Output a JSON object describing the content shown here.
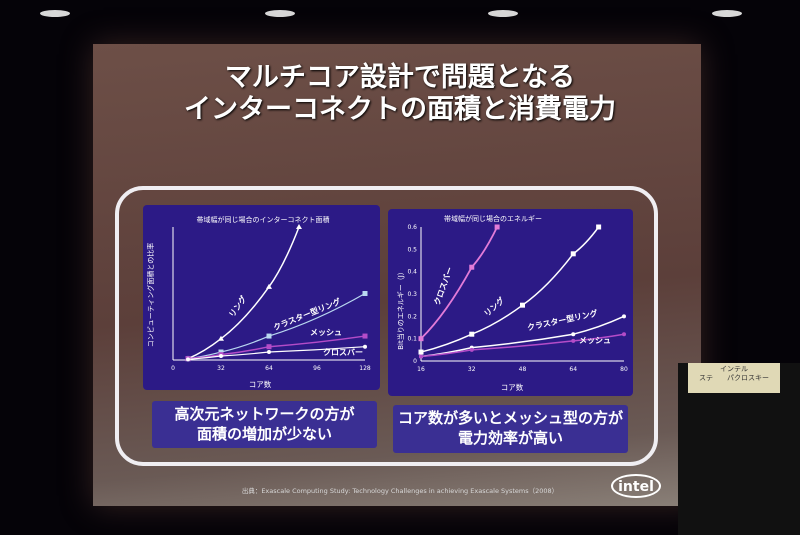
{
  "title_line1": "マルチコア設計で問題となる",
  "title_line2": "インターコネクトの面積と消費電力",
  "caption_left_line1": "高次元ネットワークの方が",
  "caption_left_line2": "面積の増加が少ない",
  "caption_right_line1": "コア数が多いとメッシュ型の方が",
  "caption_right_line2": "電力効率が高い",
  "source": "出典：Exascale Computing Study: Technology Challenges in achieving Exascale Systems（2008）",
  "logo": "intel",
  "podium_sign_line1": "インテル",
  "podium_sign_line2": "ステ　　パクロスキー",
  "colors": {
    "panel": "#2c1a86",
    "curve": "#ffffff",
    "highlight": "#e27bd8",
    "mesh": "#b44cc8"
  },
  "chart_data": [
    {
      "type": "line",
      "title": "帯域幅が同じ場合のインターコネクト面積",
      "xlabel": "コア数",
      "ylabel": "コンピューティング面積との比率",
      "x_ticks": [
        "0",
        "32",
        "64",
        "96",
        "128"
      ],
      "xlim": [
        0,
        128
      ],
      "ylim": [
        0,
        1
      ],
      "series": [
        {
          "name": "リング",
          "x": [
            10,
            32,
            64,
            84
          ],
          "y": [
            0.01,
            0.16,
            0.55,
            1.0
          ]
        },
        {
          "name": "クラスター型リング",
          "x": [
            10,
            32,
            64,
            128
          ],
          "y": [
            0.01,
            0.06,
            0.18,
            0.5
          ]
        },
        {
          "name": "メッシュ",
          "x": [
            10,
            32,
            64,
            128
          ],
          "y": [
            0.01,
            0.04,
            0.1,
            0.18
          ]
        },
        {
          "name": "クロスバー",
          "x": [
            10,
            32,
            64,
            128
          ],
          "y": [
            0.005,
            0.03,
            0.06,
            0.1
          ]
        }
      ]
    },
    {
      "type": "line",
      "title": "帯域幅が同じ場合のエネルギー",
      "xlabel": "コア数",
      "ylabel": "Bit当りのエネルギー（J）",
      "x_ticks": [
        "16",
        "32",
        "48",
        "64",
        "80"
      ],
      "y_ticks": [
        "0",
        "0.1",
        "0.2",
        "0.3",
        "0.4",
        "0.5",
        "0.6"
      ],
      "xlim": [
        16,
        80
      ],
      "ylim": [
        0,
        0.6
      ],
      "series": [
        {
          "name": "クロスバー",
          "x": [
            16,
            32,
            40
          ],
          "y": [
            0.1,
            0.42,
            0.6
          ]
        },
        {
          "name": "リング",
          "x": [
            16,
            32,
            48,
            64,
            72
          ],
          "y": [
            0.04,
            0.12,
            0.25,
            0.48,
            0.6
          ]
        },
        {
          "name": "クラスター型リング",
          "x": [
            16,
            32,
            64,
            80
          ],
          "y": [
            0.02,
            0.06,
            0.12,
            0.2
          ]
        },
        {
          "name": "メッシュ",
          "x": [
            16,
            32,
            64,
            80
          ],
          "y": [
            0.02,
            0.05,
            0.09,
            0.12
          ]
        }
      ]
    }
  ]
}
